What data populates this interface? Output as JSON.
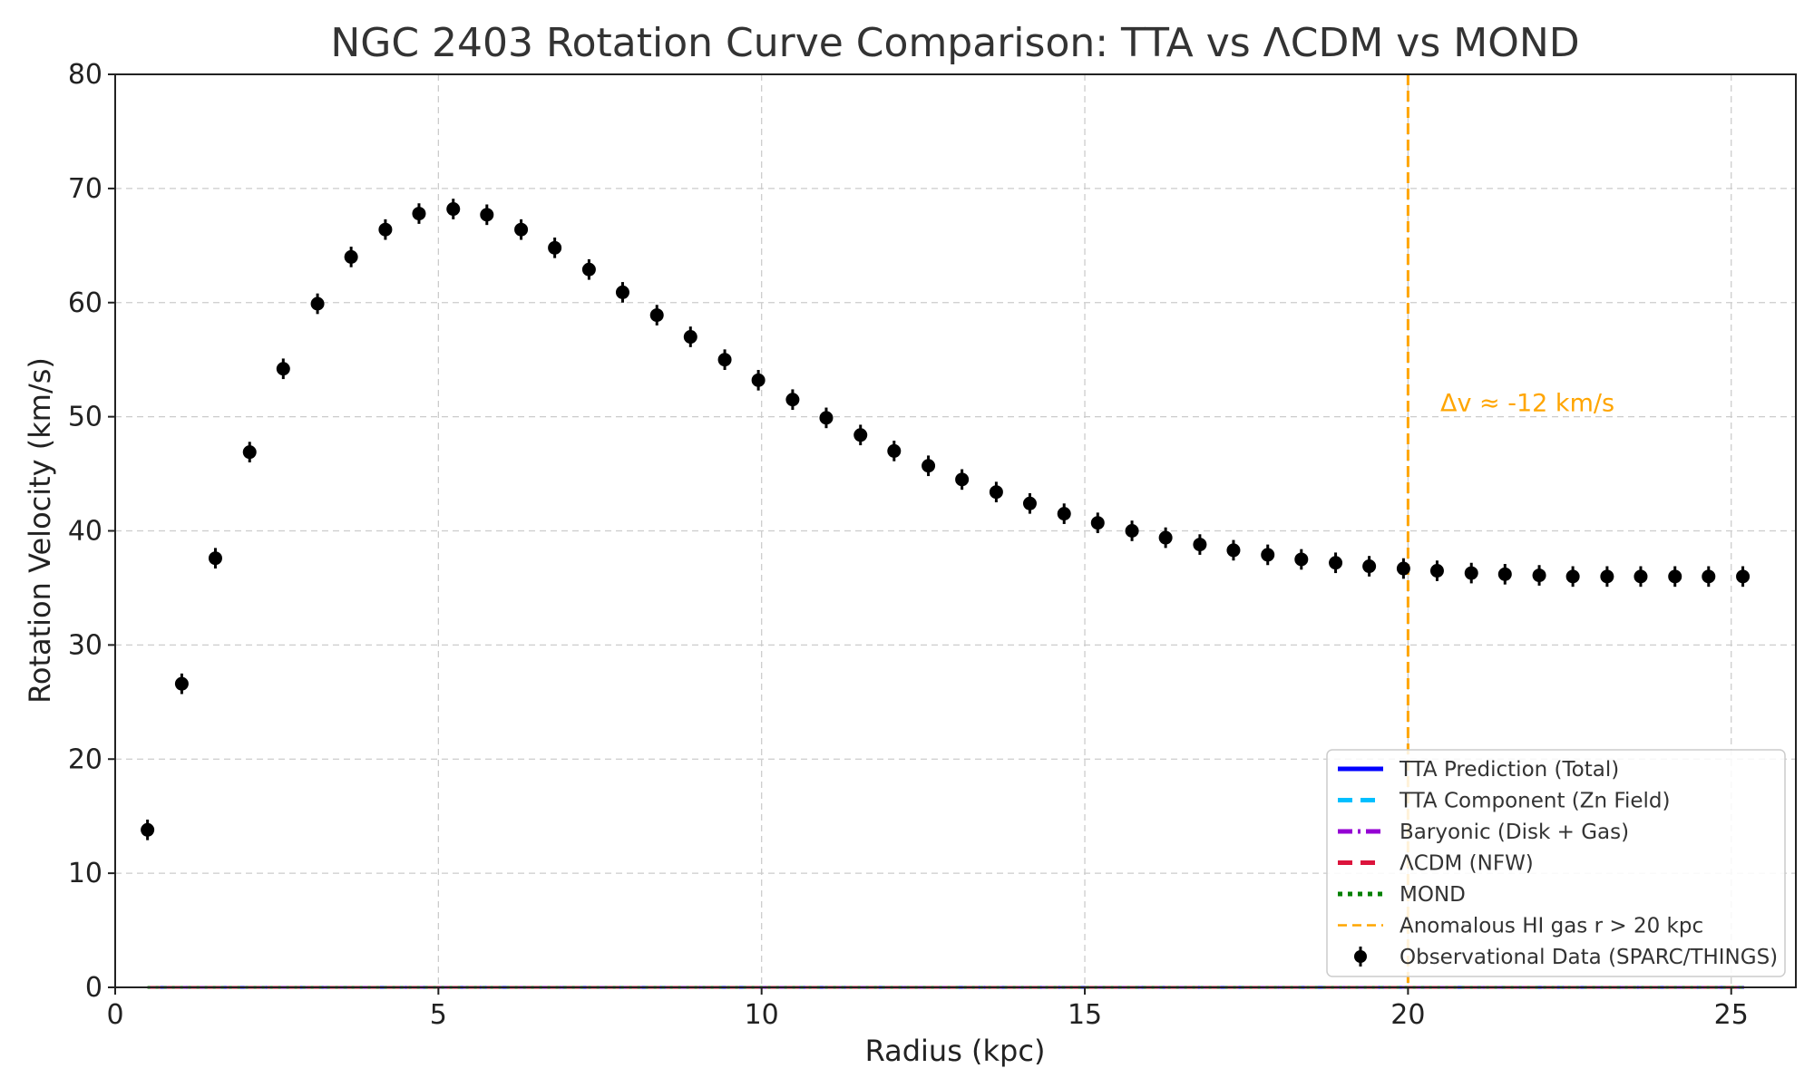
{
  "chart_data": {
    "type": "scatter",
    "title": "NGC 2403 Rotation Curve Comparison: TTA vs ΛCDM vs MOND",
    "xlabel": "Radius (kpc)",
    "ylabel": "Rotation Velocity (km/s)",
    "xlim": [
      0,
      26
    ],
    "ylim": [
      0,
      80
    ],
    "xticks": [
      0,
      5,
      10,
      15,
      20,
      25
    ],
    "yticks": [
      0,
      10,
      20,
      30,
      40,
      50,
      60,
      70,
      80
    ],
    "grid": true,
    "legend_position": "lower-right",
    "series": [
      {
        "name": "TTA Prediction (Total)",
        "kind": "line",
        "color": "#0000ff",
        "style": "solid",
        "x": [
          0.5,
          25.2
        ],
        "y": [
          0,
          0
        ]
      },
      {
        "name": "TTA Component (Zn Field)",
        "kind": "line",
        "color": "#00bfff",
        "style": "dashed",
        "x": [
          0.5,
          25.2
        ],
        "y": [
          0,
          0
        ]
      },
      {
        "name": "Baryonic (Disk + Gas)",
        "kind": "line",
        "color": "#9400d3",
        "style": "dashdot",
        "x": [
          0.5,
          25.2
        ],
        "y": [
          0,
          0
        ]
      },
      {
        "name": "ΛCDM (NFW)",
        "kind": "line",
        "color": "#dc143c",
        "style": "dashed",
        "x": [
          0.5,
          25.2
        ],
        "y": [
          0,
          0
        ]
      },
      {
        "name": "MOND",
        "kind": "line",
        "color": "#008000",
        "style": "dotted",
        "x": [
          0.5,
          25.2
        ],
        "y": [
          0,
          0
        ]
      },
      {
        "name": "Anomalous HI gas r > 20 kpc",
        "kind": "vline",
        "color": "#ffa500",
        "style": "dashed",
        "x": 20
      },
      {
        "name": "Observational Data (SPARC/THINGS)",
        "kind": "errorbar",
        "color": "#000000",
        "x": [
          0.5,
          1.03,
          1.55,
          2.08,
          2.6,
          3.13,
          3.65,
          4.18,
          4.7,
          5.23,
          5.75,
          6.28,
          6.8,
          7.33,
          7.85,
          8.38,
          8.9,
          9.43,
          9.95,
          10.48,
          11.0,
          11.53,
          12.05,
          12.58,
          13.1,
          13.63,
          14.15,
          14.68,
          15.2,
          15.73,
          16.25,
          16.78,
          17.3,
          17.83,
          18.35,
          18.88,
          19.4,
          19.93,
          20.45,
          20.98,
          21.5,
          22.03,
          22.55,
          23.08,
          23.6,
          24.13,
          24.65,
          25.18
        ],
        "y": [
          13.8,
          26.6,
          37.6,
          46.9,
          54.2,
          59.9,
          64.0,
          66.4,
          67.8,
          68.2,
          67.7,
          66.4,
          64.8,
          62.9,
          60.9,
          58.9,
          57.0,
          55.0,
          53.2,
          51.5,
          49.9,
          48.4,
          47.0,
          45.7,
          44.5,
          43.4,
          42.4,
          41.5,
          40.7,
          40.0,
          39.4,
          38.8,
          38.3,
          37.9,
          37.5,
          37.2,
          36.9,
          36.7,
          36.5,
          36.3,
          36.2,
          36.1,
          36.0,
          36.0,
          36.0,
          36.0,
          36.0,
          36.0
        ],
        "yerr": 0.9
      }
    ],
    "annotations": [
      {
        "text": "Δv ≈ -12 km/s",
        "x": 20.5,
        "y": 50.5,
        "color": "#ffa500"
      }
    ]
  }
}
